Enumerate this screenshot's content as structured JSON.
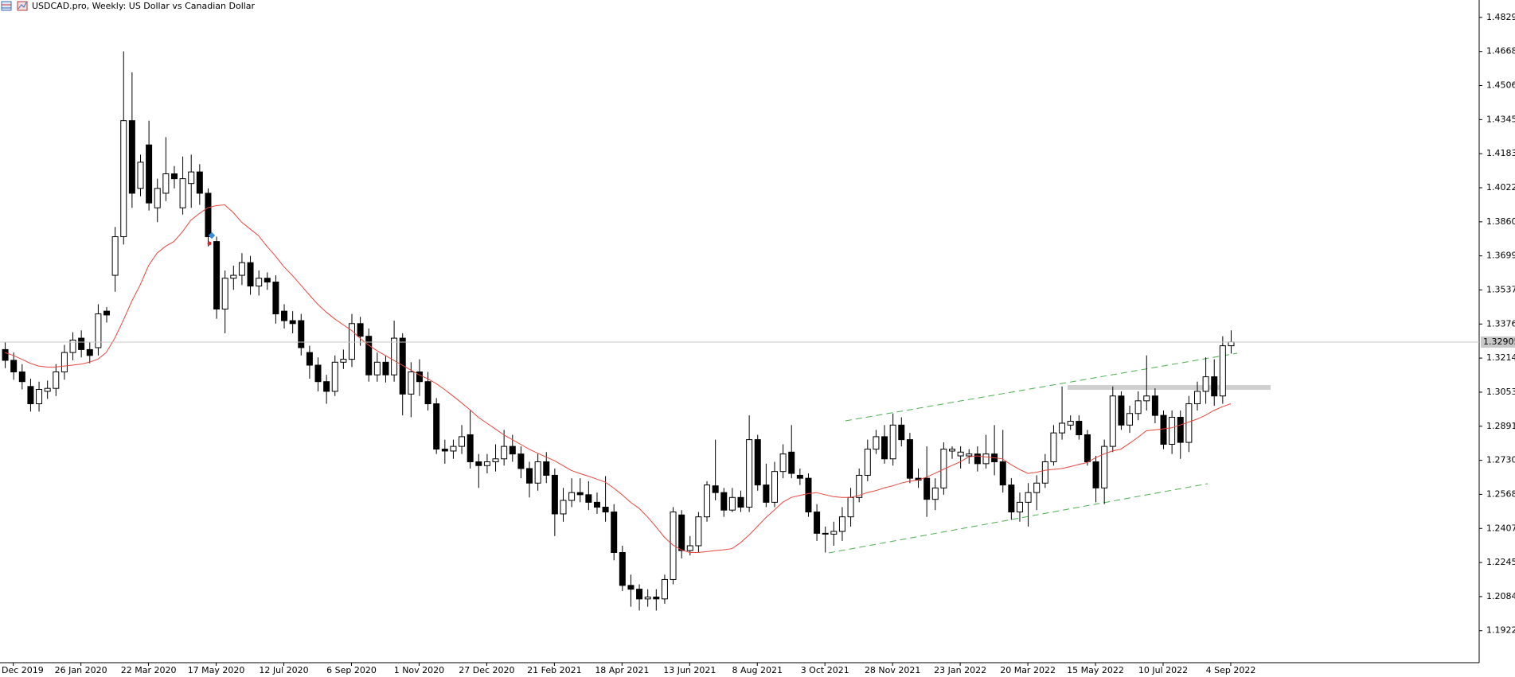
{
  "chart_data": {
    "type": "candlestick",
    "title": "USDCAD.pro, Weekly:  US Dollar vs Canadian Dollar",
    "categories": [
      null,
      "Dec 2019",
      null,
      null,
      null,
      null,
      null,
      null,
      null,
      "26 Jan 2020",
      null,
      null,
      null,
      null,
      null,
      null,
      null,
      "22 Mar 2020",
      null,
      null,
      null,
      null,
      null,
      null,
      null,
      "17 May 2020",
      null,
      null,
      null,
      null,
      null,
      null,
      null,
      "12 Jul 2020",
      null,
      null,
      null,
      null,
      null,
      null,
      null,
      "6 Sep 2020",
      null,
      null,
      null,
      null,
      null,
      null,
      null,
      "1 Nov 2020",
      null,
      null,
      null,
      null,
      null,
      null,
      null,
      "27 Dec 2020",
      null,
      null,
      null,
      null,
      null,
      null,
      null,
      "21 Feb 2021",
      null,
      null,
      null,
      null,
      null,
      null,
      null,
      "18 Apr 2021",
      null,
      null,
      null,
      null,
      null,
      null,
      null,
      "13 Jun 2021",
      null,
      null,
      null,
      null,
      null,
      null,
      null,
      "8 Aug 2021",
      null,
      null,
      null,
      null,
      null,
      null,
      null,
      "3 Oct 2021",
      null,
      null,
      null,
      null,
      null,
      null,
      null,
      "28 Nov 2021",
      null,
      null,
      null,
      null,
      null,
      null,
      null,
      "23 Jan 2022",
      null,
      null,
      null,
      null,
      null,
      null,
      null,
      "20 Mar 2022",
      null,
      null,
      null,
      null,
      null,
      null,
      null,
      "15 May 2022",
      null,
      null,
      null,
      null,
      null,
      null,
      null,
      "10 Jul 2022",
      null,
      null,
      null,
      null,
      null,
      null,
      null,
      "4 Sep 2022"
    ],
    "open": [
      1.3255,
      1.3204,
      1.3149,
      1.308,
      1.2998,
      1.3057,
      1.3071,
      1.3149,
      1.3241,
      1.3309,
      1.3255,
      1.3264,
      1.3437,
      1.3607,
      1.379,
      1.434,
      1.4019,
      1.4225,
      1.3927,
      1.3996,
      1.4088,
      1.3927,
      1.4042,
      1.4097,
      1.3996,
      1.3767,
      1.3447,
      1.3593,
      1.3607,
      1.3667,
      1.3556,
      1.3593,
      1.3575,
      1.3437,
      1.3392,
      1.3392,
      1.3241,
      1.3181,
      1.3103,
      1.3057,
      1.3195,
      1.3209,
      1.3378,
      1.3318,
      1.3135,
      1.3195,
      1.3135,
      1.3309,
      1.3044,
      1.3149,
      1.3103,
      1.2998,
      1.2783,
      1.2774,
      1.2796,
      1.2851,
      1.2723,
      1.2705,
      1.2723,
      1.2737,
      1.2796,
      1.276,
      1.2691,
      1.2622,
      1.2723,
      1.2659,
      1.2476,
      1.254,
      1.2577,
      1.2567,
      1.2531,
      1.2508,
      1.2485,
      1.2293,
      1.2137,
      1.2119,
      1.2073,
      1.2082,
      1.2073,
      1.2165,
      1.2471,
      1.2302,
      1.2325,
      1.2462,
      1.2609,
      1.2577,
      1.2494,
      1.2554,
      1.2508,
      1.2828,
      1.2613,
      1.2531,
      1.2677,
      1.2769,
      1.2659,
      1.2645,
      1.2485,
      1.2384,
      1.238,
      1.2393,
      1.2462,
      1.2554,
      1.2659,
      1.2783,
      1.2842,
      1.2737,
      1.2897,
      1.2828,
      1.2645,
      1.2645,
      1.2545,
      1.2599,
      1.2774,
      1.2751,
      1.2751,
      1.276,
      1.2714,
      1.276,
      1.2723,
      1.2613,
      1.2485,
      1.2531,
      1.2577,
      1.2622,
      1.2723,
      1.286,
      1.2897,
      1.2915,
      1.2851,
      1.2723,
      1.2599,
      1.2796,
      1.3035,
      1.2897,
      1.2952,
      1.3012,
      1.3035,
      1.2943,
      1.2806,
      1.2934,
      1.2815,
      1.2998,
      1.3057,
      1.3126,
      1.3035,
      1.3273
    ],
    "high": [
      1.3291,
      1.3241,
      1.3186,
      1.3117,
      1.3103,
      1.3108,
      1.3186,
      1.3277,
      1.3337,
      1.3346,
      1.3291,
      1.347,
      1.3456,
      1.3836,
      1.4669,
      1.4569,
      1.4179,
      1.434,
      1.4065,
      1.4262,
      1.4125,
      1.417,
      1.4179,
      1.4134,
      1.4019,
      1.379,
      1.363,
      1.3653,
      1.3712,
      1.3699,
      1.363,
      1.3621,
      1.3607,
      1.347,
      1.3437,
      1.3424,
      1.3273,
      1.3218,
      1.3135,
      1.3227,
      1.3255,
      1.3424,
      1.341,
      1.3355,
      1.3241,
      1.3227,
      1.3392,
      1.3332,
      1.3195,
      1.3209,
      1.3149,
      1.3025,
      1.2828,
      1.2828,
      1.2897,
      1.2966,
      1.276,
      1.276,
      1.2806,
      1.2874,
      1.2851,
      1.2796,
      1.2723,
      1.276,
      1.2769,
      1.2691,
      1.2599,
      1.2645,
      1.2645,
      1.2631,
      1.2577,
      1.2655,
      1.2522,
      1.2325,
      1.2188,
      1.2142,
      1.2119,
      1.2119,
      1.2188,
      1.2508,
      1.2494,
      1.2371,
      1.2485,
      1.2631,
      1.2828,
      1.2599,
      1.2599,
      1.2586,
      1.2943,
      1.2851,
      1.2714,
      1.2723,
      1.2806,
      1.2897,
      1.2691,
      1.2668,
      1.2522,
      1.2416,
      1.2439,
      1.2508,
      1.2599,
      1.2691,
      1.2828,
      1.2874,
      1.2897,
      1.2952,
      1.2934,
      1.286,
      1.2691,
      1.2796,
      1.2645,
      1.2815,
      1.2796,
      1.2796,
      1.2783,
      1.2796,
      1.2851,
      1.2897,
      1.2874,
      1.2645,
      1.2577,
      1.2622,
      1.2659,
      1.276,
      1.2897,
      1.308,
      1.2943,
      1.2943,
      1.2874,
      1.2751,
      1.2828,
      1.308,
      1.3057,
      1.2989,
      1.3057,
      1.3227,
      1.3071,
      1.2966,
      1.2966,
      1.2966,
      1.3035,
      1.3103,
      1.3218,
      1.3209,
      1.3318,
      1.3346
    ],
    "low": [
      1.3167,
      1.3112,
      1.3066,
      1.2961,
      1.2961,
      1.3021,
      1.3035,
      1.3112,
      1.3204,
      1.3218,
      1.319,
      1.3227,
      1.3383,
      1.3529,
      1.3753,
      1.3927,
      1.3982,
      1.3914,
      1.3859,
      1.3959,
      1.4019,
      1.3895,
      1.3927,
      1.3941,
      1.3744,
      1.3401,
      1.3332,
      1.3538,
      1.3561,
      1.3515,
      1.3511,
      1.3538,
      1.3378,
      1.3355,
      1.3332,
      1.3227,
      1.3117,
      1.3057,
      1.2998,
      1.3035,
      1.3163,
      1.3172,
      1.3273,
      1.3103,
      1.3103,
      1.3099,
      1.3103,
      1.2943,
      1.2934,
      1.3035,
      1.2966,
      1.276,
      1.2714,
      1.2737,
      1.276,
      1.2691,
      1.2599,
      1.2668,
      1.2677,
      1.2705,
      1.2723,
      1.2645,
      1.2554,
      1.2586,
      1.2622,
      1.2371,
      1.2439,
      1.2508,
      1.2531,
      1.2494,
      1.2476,
      1.2439,
      1.2256,
      1.211,
      1.2036,
      1.2018,
      1.2036,
      1.2018,
      1.205,
      1.2142,
      1.2265,
      1.2279,
      1.2293,
      1.2439,
      1.254,
      1.2462,
      1.2485,
      1.2485,
      1.2485,
      1.2586,
      1.2508,
      1.2508,
      1.2645,
      1.2645,
      1.2613,
      1.2462,
      1.2348,
      1.2293,
      1.2325,
      1.2348,
      1.2416,
      1.2531,
      1.2631,
      1.276,
      1.2714,
      1.2705,
      1.2796,
      1.2622,
      1.2599,
      1.2462,
      1.2494,
      1.2567,
      1.2737,
      1.2691,
      1.2714,
      1.2677,
      1.2691,
      1.2659,
      1.2577,
      1.2448,
      1.2439,
      1.2416,
      1.2494,
      1.2599,
      1.2705,
      1.2828,
      1.2874,
      1.2828,
      1.2705,
      1.2531,
      1.2522,
      1.2769,
      1.2874,
      1.286,
      1.292,
      1.2966,
      1.2906,
      1.2783,
      1.276,
      1.2737,
      1.2769,
      1.2966,
      1.2998,
      1.2989,
      1.2998,
      1.3236
    ],
    "close": [
      1.3204,
      1.3149,
      1.3103,
      1.2998,
      1.3066,
      1.3071,
      1.3149,
      1.3241,
      1.33,
      1.3255,
      1.3227,
      1.3424,
      1.3419,
      1.379,
      1.434,
      1.3996,
      1.4143,
      1.395,
      1.4019,
      1.4088,
      1.4065,
      1.4065,
      1.4097,
      1.3996,
      1.379,
      1.3447,
      1.3593,
      1.3607,
      1.3667,
      1.3556,
      1.3593,
      1.3575,
      1.3424,
      1.3392,
      1.3378,
      1.3264,
      1.3181,
      1.3103,
      1.3057,
      1.3195,
      1.3209,
      1.3378,
      1.3318,
      1.3135,
      1.3195,
      1.3135,
      1.3309,
      1.3044,
      1.3149,
      1.3103,
      1.2998,
      1.2783,
      1.2774,
      1.2796,
      1.2842,
      1.2723,
      1.2705,
      1.2723,
      1.2737,
      1.2796,
      1.276,
      1.2691,
      1.2622,
      1.2723,
      1.2659,
      1.2476,
      1.254,
      1.2577,
      1.2567,
      1.2531,
      1.2508,
      1.2485,
      1.2293,
      1.2137,
      1.2119,
      1.2073,
      1.2082,
      1.2073,
      1.2165,
      1.2485,
      1.2302,
      1.2325,
      1.2462,
      1.2613,
      1.2577,
      1.2494,
      1.2554,
      1.2508,
      1.2828,
      1.2613,
      1.2531,
      1.2677,
      1.276,
      1.2668,
      1.2645,
      1.2485,
      1.2384,
      1.238,
      1.2393,
      1.2462,
      1.2554,
      1.2659,
      1.2783,
      1.2842,
      1.2737,
      1.2897,
      1.2828,
      1.2645,
      1.2636,
      1.2545,
      1.2599,
      1.2783,
      1.2783,
      1.2769,
      1.276,
      1.2714,
      1.276,
      1.2723,
      1.2613,
      1.2485,
      1.2531,
      1.2577,
      1.2622,
      1.2723,
      1.286,
      1.2906,
      1.2915,
      1.2851,
      1.2723,
      1.2599,
      1.2796,
      1.3035,
      1.2897,
      1.2952,
      1.3012,
      1.3035,
      1.2943,
      1.2806,
      1.2934,
      1.2815,
      1.2998,
      1.3057,
      1.3126,
      1.3035,
      1.3273,
      1.3291
    ],
    "up_color": "#ffffff",
    "down_color": "#000000",
    "moving_average": {
      "color": "#e8473f",
      "values": [
        1.3241,
        1.3227,
        1.3209,
        1.319,
        1.3177,
        1.3172,
        1.3172,
        1.3177,
        1.3181,
        1.3186,
        1.3195,
        1.3209,
        1.3241,
        1.3309,
        1.3392,
        1.3483,
        1.3561,
        1.3653,
        1.3712,
        1.3744,
        1.3767,
        1.3813,
        1.3868,
        1.39,
        1.3927,
        1.3937,
        1.3941,
        1.3905,
        1.3859,
        1.3827,
        1.3795,
        1.3744,
        1.3699,
        1.3648,
        1.3607,
        1.3561,
        1.3515,
        1.347,
        1.3433,
        1.3401,
        1.3373,
        1.3346,
        1.3309,
        1.3277,
        1.325,
        1.3227,
        1.3204,
        1.3181,
        1.3158,
        1.3135,
        1.3117,
        1.3094,
        1.3066,
        1.3035,
        1.3003,
        1.297,
        1.2934,
        1.2906,
        1.2879,
        1.2851,
        1.2828,
        1.2806,
        1.2783,
        1.2764,
        1.2746,
        1.2728,
        1.2705,
        1.2682,
        1.2668,
        1.2655,
        1.2641,
        1.2627,
        1.2599,
        1.2567,
        1.2531,
        1.2503,
        1.2462,
        1.2416,
        1.2366,
        1.2329,
        1.2306,
        1.2293,
        1.2293,
        1.2297,
        1.2302,
        1.2306,
        1.2311,
        1.2339,
        1.2375,
        1.2416,
        1.2458,
        1.2494,
        1.2531,
        1.2554,
        1.2563,
        1.2572,
        1.2577,
        1.2567,
        1.2558,
        1.2554,
        1.2554,
        1.2563,
        1.2577,
        1.2586,
        1.2599,
        1.2609,
        1.2622,
        1.2631,
        1.2636,
        1.265,
        1.2668,
        1.2687,
        1.2705,
        1.2723,
        1.2746,
        1.2751,
        1.2746,
        1.2742,
        1.2737,
        1.271,
        1.2687,
        1.2668,
        1.2673,
        1.2682,
        1.2687,
        1.2691,
        1.27,
        1.271,
        1.2719,
        1.2742,
        1.276,
        1.2774,
        1.2783,
        1.281,
        1.2838,
        1.287,
        1.2874,
        1.2879,
        1.2884,
        1.2897,
        1.2911,
        1.2925,
        1.2943,
        1.2966,
        1.2984,
        1.2998
      ]
    },
    "last_price": 1.32905,
    "ylim": [
      1.17707,
      1.4912
    ],
    "yticks": [
      1.48295,
      {
        "value": 1.4668,
        "label": "1.46680"
      },
      1.45065,
      1.4345,
      1.41835,
      {
        "value": 1.4022,
        "label": "1.40220"
      },
      1.38605,
      {
        "value": 1.3699,
        "label": "1.36990"
      },
      1.35375,
      {
        "value": 1.3376,
        "label": "1.33760"
      },
      1.32145,
      {
        "value": 1.3053,
        "label": "1.30530"
      },
      1.28915,
      {
        "value": 1.273,
        "label": "1.27300"
      },
      1.25685,
      {
        "value": 1.2407,
        "label": "1.24070"
      },
      1.22455,
      {
        "value": 1.2084,
        "label": "1.20840"
      },
      1.19225
    ],
    "grid": false
  }
}
